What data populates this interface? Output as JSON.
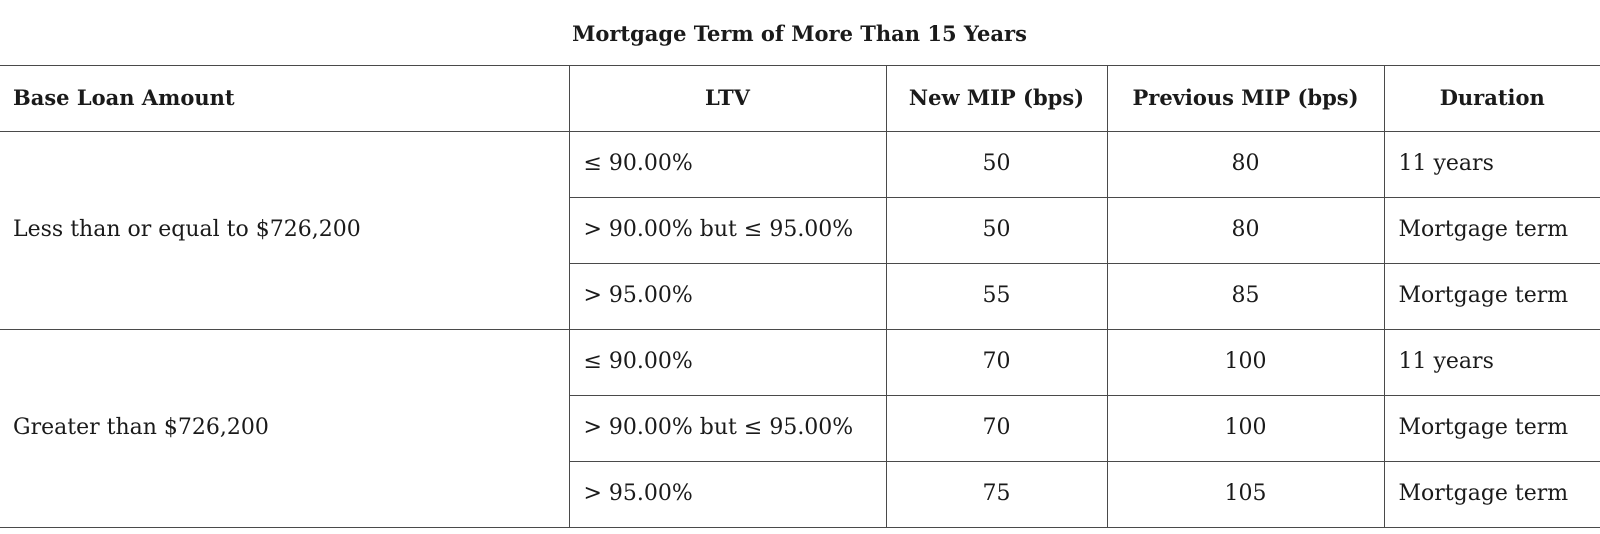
{
  "table": {
    "title": "Mortgage Term of More Than 15 Years",
    "headers": {
      "base_loan_amount": "Base Loan Amount",
      "ltv": "LTV",
      "new_mip": "New MIP (bps)",
      "previous_mip": "Previous MIP (bps)",
      "duration": "Duration"
    },
    "groups": [
      {
        "base_loan_amount": "Less than or equal to $726,200",
        "rows": [
          {
            "ltv": "≤ 90.00%",
            "new_mip": "50",
            "previous_mip": "80",
            "duration": "11 years"
          },
          {
            "ltv": "> 90.00% but ≤ 95.00%",
            "new_mip": "50",
            "previous_mip": "80",
            "duration": "Mortgage term"
          },
          {
            "ltv": "> 95.00%",
            "new_mip": "55",
            "previous_mip": "85",
            "duration": "Mortgage term"
          }
        ]
      },
      {
        "base_loan_amount": "Greater than $726,200",
        "rows": [
          {
            "ltv": "≤ 90.00%",
            "new_mip": "70",
            "previous_mip": "100",
            "duration": "11 years"
          },
          {
            "ltv": "> 90.00% but ≤ 95.00%",
            "new_mip": "70",
            "previous_mip": "100",
            "duration": "Mortgage term"
          },
          {
            "ltv": "> 95.00%",
            "new_mip": "75",
            "previous_mip": "105",
            "duration": "Mortgage term"
          }
        ]
      }
    ]
  }
}
